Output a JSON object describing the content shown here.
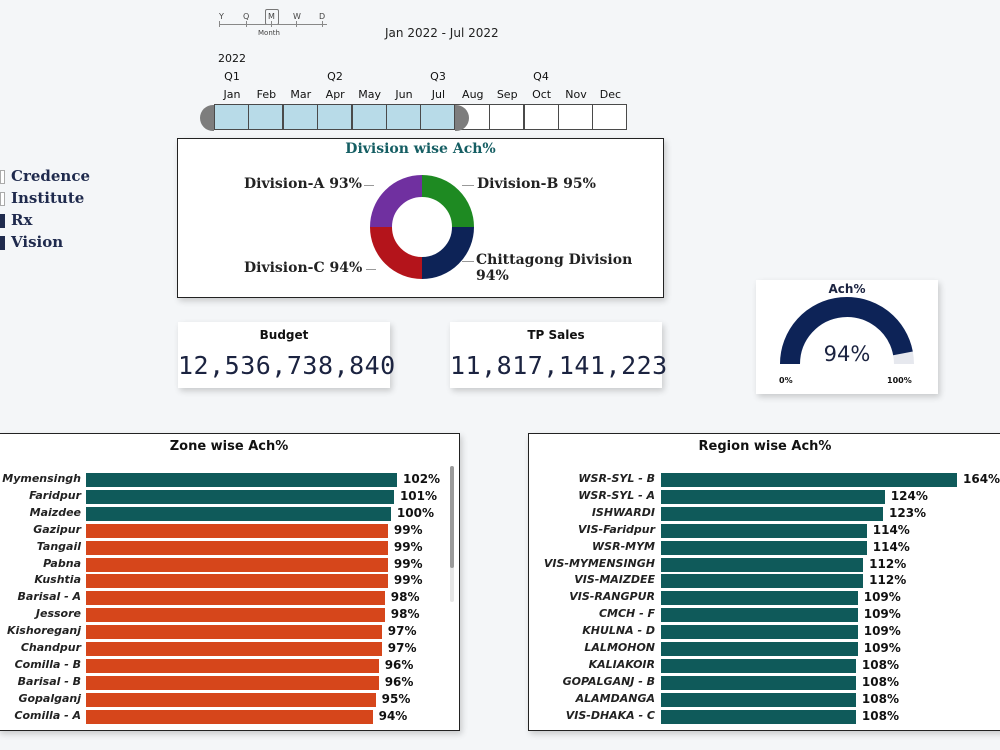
{
  "timeline": {
    "granularity_options": [
      "Y",
      "Q",
      "M",
      "W",
      "D"
    ],
    "granularity_selected": "M",
    "granularity_caption": "Month",
    "date_range": "Jan 2022 - Jul 2022",
    "year": "2022",
    "quarters": [
      "Q1",
      "Q2",
      "Q3",
      "Q4"
    ],
    "months": [
      "Jan",
      "Feb",
      "Mar",
      "Apr",
      "May",
      "Jun",
      "Jul",
      "Aug",
      "Sep",
      "Oct",
      "Nov",
      "Dec"
    ],
    "selected_months": 7,
    "selected_color": "#b8dbe8"
  },
  "legend": [
    {
      "label": "Credence",
      "color": "#ffffff"
    },
    {
      "label": "Institute",
      "color": "#ffffff"
    },
    {
      "label": "Rx",
      "color": "#1f2a4d"
    },
    {
      "label": "Vision",
      "color": "#1f2a4d"
    }
  ],
  "division_chart": {
    "title": "Division wise Ach%",
    "slices": [
      {
        "name": "Division-A",
        "value": "93%",
        "color": "#7030a0"
      },
      {
        "name": "Division-B",
        "value": "95%",
        "color": "#1e8a22"
      },
      {
        "name": "Chittagong Division",
        "value": "94%",
        "color": "#0d2357"
      },
      {
        "name": "Division-C",
        "value": "94%",
        "color": "#b4141b"
      }
    ]
  },
  "kpis": {
    "budget": {
      "label": "Budget",
      "value": "12,536,738,840"
    },
    "tp_sales": {
      "label": "TP Sales",
      "value": "11,817,141,223"
    }
  },
  "gauge": {
    "title": "Ach%",
    "value": "94%",
    "fraction": 0.94,
    "min_label": "0%",
    "max_label": "100%",
    "color": "#0d2357"
  },
  "zone_chart": {
    "title": "Zone wise Ach%",
    "rows": [
      {
        "name": "Mymensingh",
        "value": 102,
        "label": "102%",
        "color": "#0f5a5a"
      },
      {
        "name": "Faridpur",
        "value": 101,
        "label": "101%",
        "color": "#0f5a5a"
      },
      {
        "name": "Maizdee",
        "value": 100,
        "label": "100%",
        "color": "#0f5a5a"
      },
      {
        "name": "Gazipur",
        "value": 99,
        "label": "99%",
        "color": "#d6461b"
      },
      {
        "name": "Tangail",
        "value": 99,
        "label": "99%",
        "color": "#d6461b"
      },
      {
        "name": "Pabna",
        "value": 99,
        "label": "99%",
        "color": "#d6461b"
      },
      {
        "name": "Kushtia",
        "value": 99,
        "label": "99%",
        "color": "#d6461b"
      },
      {
        "name": "Barisal - A",
        "value": 98,
        "label": "98%",
        "color": "#d6461b"
      },
      {
        "name": "Jessore",
        "value": 98,
        "label": "98%",
        "color": "#d6461b"
      },
      {
        "name": "Kishoreganj",
        "value": 97,
        "label": "97%",
        "color": "#d6461b"
      },
      {
        "name": "Chandpur",
        "value": 97,
        "label": "97%",
        "color": "#d6461b"
      },
      {
        "name": "Comilla - B",
        "value": 96,
        "label": "96%",
        "color": "#d6461b"
      },
      {
        "name": "Barisal - B",
        "value": 96,
        "label": "96%",
        "color": "#d6461b"
      },
      {
        "name": "Gopalganj",
        "value": 95,
        "label": "95%",
        "color": "#d6461b"
      },
      {
        "name": "Comilla - A",
        "value": 94,
        "label": "94%",
        "color": "#d6461b"
      }
    ]
  },
  "region_chart": {
    "title": "Region wise Ach%",
    "rows": [
      {
        "name": "WSR-SYL - B",
        "value": 164,
        "label": "164%",
        "color": "#0f5a5a"
      },
      {
        "name": "WSR-SYL - A",
        "value": 124,
        "label": "124%",
        "color": "#0f5a5a"
      },
      {
        "name": "ISHWARDI",
        "value": 123,
        "label": "123%",
        "color": "#0f5a5a"
      },
      {
        "name": "VIS-Faridpur",
        "value": 114,
        "label": "114%",
        "color": "#0f5a5a"
      },
      {
        "name": "WSR-MYM",
        "value": 114,
        "label": "114%",
        "color": "#0f5a5a"
      },
      {
        "name": "VIS-MYMENSINGH",
        "value": 112,
        "label": "112%",
        "color": "#0f5a5a"
      },
      {
        "name": "VIS-MAIZDEE",
        "value": 112,
        "label": "112%",
        "color": "#0f5a5a"
      },
      {
        "name": "VIS-RANGPUR",
        "value": 109,
        "label": "109%",
        "color": "#0f5a5a"
      },
      {
        "name": "CMCH - F",
        "value": 109,
        "label": "109%",
        "color": "#0f5a5a"
      },
      {
        "name": "KHULNA - D",
        "value": 109,
        "label": "109%",
        "color": "#0f5a5a"
      },
      {
        "name": "LALMOHON",
        "value": 109,
        "label": "109%",
        "color": "#0f5a5a"
      },
      {
        "name": "KALIAKOIR",
        "value": 108,
        "label": "108%",
        "color": "#0f5a5a"
      },
      {
        "name": "GOPALGANJ - B",
        "value": 108,
        "label": "108%",
        "color": "#0f5a5a"
      },
      {
        "name": "ALAMDANGA",
        "value": 108,
        "label": "108%",
        "color": "#0f5a5a"
      },
      {
        "name": "VIS-DHAKA - C",
        "value": 108,
        "label": "108%",
        "color": "#0f5a5a"
      }
    ]
  }
}
